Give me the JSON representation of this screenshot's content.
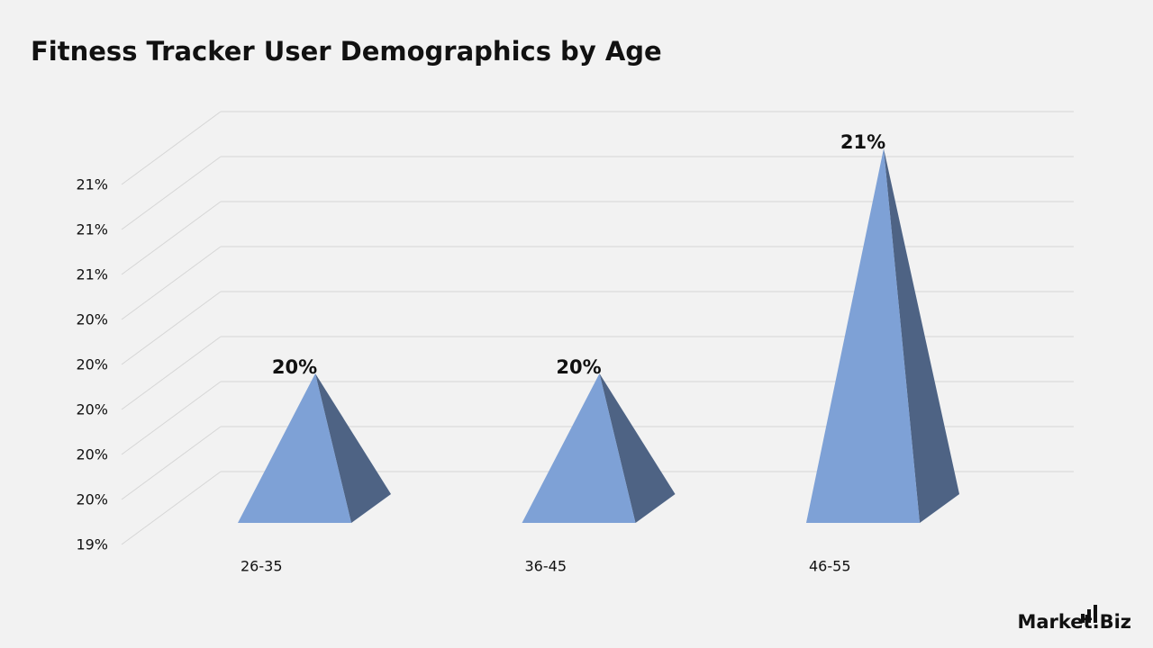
{
  "chart_data": {
    "type": "pyramid3d",
    "title": "Fitness Tracker User Demographics by Age",
    "categories": [
      "26-35",
      "36-45",
      "46-55"
    ],
    "values": [
      20,
      20,
      21
    ],
    "value_labels": [
      "20%",
      "20%",
      "21%"
    ],
    "color": "#7ea1d6",
    "ylim": [
      19.4,
      21.0
    ],
    "yticks": [
      {
        "value": 19.4,
        "label": "19%"
      },
      {
        "value": 19.6,
        "label": "20%"
      },
      {
        "value": 19.8,
        "label": "20%"
      },
      {
        "value": 20.0,
        "label": "20%"
      },
      {
        "value": 20.2,
        "label": "20%"
      },
      {
        "value": 20.4,
        "label": "20%"
      },
      {
        "value": 20.6,
        "label": "21%"
      },
      {
        "value": 20.8,
        "label": "21%"
      },
      {
        "value": 21.0,
        "label": "21%"
      }
    ],
    "grid": true
  },
  "brand": "Market.Biz"
}
